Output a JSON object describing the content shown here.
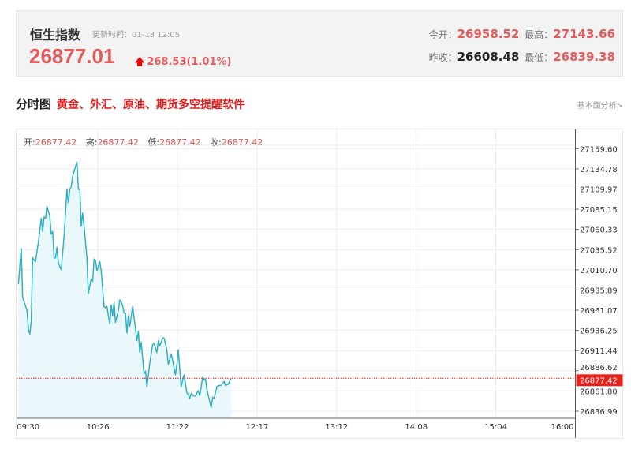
{
  "header": {
    "title": "恒生指数",
    "update_time": "更新时间：01-13 12:05",
    "price": "26877.01",
    "change": "268.53(1.01%)",
    "open_label": "今开：",
    "open": "26958.52",
    "high_label": "最高：",
    "high": "27143.66",
    "prev_close_label": "昨收：",
    "prev_close": "26608.48",
    "low_label": "最低：",
    "low": "26839.38"
  },
  "section": {
    "title": "分时图",
    "promo": "黄金、外汇、原油、期货多空提醒软件",
    "link": "基本面分析>"
  },
  "info": {
    "open_label": "开:",
    "open": "26877.42",
    "high_label": "高:",
    "high": "26877.42",
    "low_label": "低:",
    "low": "26877.42",
    "close_label": "收:",
    "close": "26877.42"
  },
  "colors": {
    "up": "#e25c5c",
    "line": "#2db3c4",
    "fill": "#e8f7fa",
    "current": "#e8231c"
  },
  "chart_data": {
    "type": "area",
    "x_ticks": [
      "09:30",
      "10:26",
      "11:22",
      "12:17",
      "13:12",
      "14:08",
      "15:04",
      "16:00"
    ],
    "x_range": [
      "09:30",
      "16:00"
    ],
    "y_ticks": [
      "27159.60",
      "27134.78",
      "27109.97",
      "27085.15",
      "27060.33",
      "27035.52",
      "27010.70",
      "26985.89",
      "26961.07",
      "26936.25",
      "26911.44",
      "26886.62",
      "26861.80",
      "26836.99"
    ],
    "ylim": [
      26836.99,
      27159.6
    ],
    "grid": true,
    "current_value": "26877.42",
    "points": [
      [
        "09:30",
        26993.1
      ],
      [
        "09:32",
        27036.8
      ],
      [
        "09:33",
        26977.0
      ],
      [
        "09:36",
        26960.8
      ],
      [
        "09:37",
        26938.2
      ],
      [
        "09:38",
        26931.7
      ],
      [
        "09:39",
        26947.9
      ],
      [
        "09:40",
        27025.4
      ],
      [
        "09:42",
        27020.6
      ],
      [
        "09:44",
        27044.8
      ],
      [
        "09:46",
        27073.9
      ],
      [
        "09:47",
        27057.8
      ],
      [
        "09:48",
        27075.6
      ],
      [
        "09:49",
        27073.9
      ],
      [
        "09:50",
        27088.5
      ],
      [
        "09:52",
        27077.2
      ],
      [
        "09:53",
        27054.5
      ],
      [
        "09:54",
        27057.8
      ],
      [
        "09:55",
        27025.4
      ],
      [
        "09:56",
        27025.4
      ],
      [
        "09:57",
        27038.4
      ],
      [
        "09:58",
        27019.0
      ],
      [
        "10:00",
        27010.9
      ],
      [
        "10:02",
        27051.3
      ],
      [
        "10:04",
        27109.5
      ],
      [
        "10:05",
        27093.3
      ],
      [
        "10:06",
        27109.5
      ],
      [
        "10:07",
        27112.7
      ],
      [
        "10:08",
        27125.7
      ],
      [
        "10:11",
        27143.4
      ],
      [
        "10:12",
        27109.5
      ],
      [
        "10:13",
        27109.5
      ],
      [
        "10:14",
        27064.2
      ],
      [
        "10:15",
        27080.4
      ],
      [
        "10:16",
        27064.2
      ],
      [
        "10:18",
        27025.4
      ],
      [
        "10:19",
        26981.8
      ],
      [
        "10:21",
        26999.6
      ],
      [
        "10:22",
        26996.4
      ],
      [
        "10:23",
        27023.8
      ],
      [
        "10:24",
        27022.2
      ],
      [
        "10:25",
        27009.3
      ],
      [
        "10:27",
        27020.6
      ],
      [
        "10:28",
        27009.3
      ],
      [
        "10:30",
        26965.6
      ],
      [
        "10:31",
        26964.0
      ],
      [
        "10:32",
        26965.6
      ],
      [
        "10:33",
        26954.3
      ],
      [
        "10:34",
        26944.6
      ],
      [
        "10:35",
        26967.3
      ],
      [
        "10:36",
        26954.3
      ],
      [
        "10:37",
        26970.5
      ],
      [
        "10:38",
        26946.2
      ],
      [
        "10:40",
        26960.8
      ],
      [
        "10:41",
        26973.7
      ],
      [
        "10:43",
        26967.3
      ],
      [
        "10:44",
        26957.6
      ],
      [
        "10:45",
        26957.6
      ],
      [
        "10:46",
        26933.3
      ],
      [
        "10:47",
        26954.3
      ],
      [
        "10:48",
        26941.4
      ],
      [
        "10:50",
        26965.6
      ],
      [
        "10:52",
        26938.2
      ],
      [
        "10:53",
        26923.6
      ],
      [
        "10:54",
        26934.9
      ],
      [
        "10:55",
        26909.1
      ],
      [
        "10:56",
        26922.0
      ],
      [
        "10:58",
        26883.2
      ],
      [
        "10:59",
        26886.4
      ],
      [
        "11:00",
        26867.0
      ],
      [
        "11:02",
        26896.1
      ],
      [
        "11:04",
        26918.8
      ],
      [
        "11:05",
        26920.4
      ],
      [
        "11:07",
        26909.1
      ],
      [
        "11:08",
        26923.6
      ],
      [
        "11:09",
        26917.2
      ],
      [
        "11:11",
        26926.9
      ],
      [
        "11:12",
        26926.9
      ],
      [
        "11:14",
        26912.3
      ],
      [
        "11:15",
        26894.5
      ],
      [
        "11:17",
        26907.5
      ],
      [
        "11:18",
        26899.4
      ],
      [
        "11:20",
        26881.6
      ],
      [
        "11:21",
        26894.5
      ],
      [
        "11:22",
        26912.3
      ],
      [
        "11:24",
        26867.0
      ],
      [
        "11:26",
        26881.6
      ],
      [
        "11:28",
        26859.0
      ],
      [
        "11:29",
        26857.4
      ],
      [
        "11:30",
        26852.5
      ],
      [
        "11:31",
        26859.0
      ],
      [
        "11:33",
        26855.7
      ],
      [
        "11:34",
        26855.7
      ],
      [
        "11:35",
        26859.0
      ],
      [
        "11:36",
        26862.2
      ],
      [
        "11:37",
        26855.7
      ],
      [
        "11:39",
        26878.4
      ],
      [
        "11:40",
        26875.1
      ],
      [
        "11:41",
        26876.7
      ],
      [
        "11:42",
        26863.8
      ],
      [
        "11:45",
        26841.2
      ],
      [
        "11:46",
        26854.1
      ],
      [
        "11:47",
        26852.5
      ],
      [
        "11:49",
        26867.0
      ],
      [
        "11:51",
        26868.7
      ],
      [
        "11:52",
        26868.7
      ],
      [
        "11:54",
        26873.5
      ],
      [
        "11:55",
        26868.7
      ],
      [
        "11:57",
        26870.3
      ],
      [
        "11:59",
        26877.4
      ]
    ]
  }
}
